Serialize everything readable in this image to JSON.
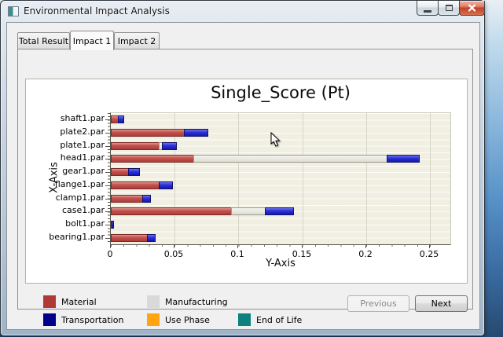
{
  "window": {
    "title": "Environmental Impact Analysis"
  },
  "tabs": [
    {
      "label": "Total Result",
      "active": false
    },
    {
      "label": "Impact 1",
      "active": true
    },
    {
      "label": "Impact 2",
      "active": false
    }
  ],
  "chart_data": {
    "type": "bar",
    "orientation": "horizontal",
    "stacked": true,
    "title": "Single_Score (Pt)",
    "xlabel": "Y-Axis",
    "ylabel": "X-Axis",
    "categories": [
      "shaft1.par",
      "plate2.par",
      "plate1.par",
      "head1.par",
      "gear1.par",
      "flange1.par",
      "clamp1.par",
      "case1.par",
      "bolt1.par",
      "bearing1.par"
    ],
    "series": [
      {
        "name": "Material",
        "color": "#b03a38",
        "values": [
          0.006,
          0.058,
          0.038,
          0.065,
          0.014,
          0.038,
          0.025,
          0.095,
          0.001,
          0.029
        ]
      },
      {
        "name": "Manufacturing",
        "color": "#d9d9d9",
        "values": [
          0,
          0,
          0.003,
          0.152,
          0,
          0,
          0,
          0.027,
          0,
          0
        ]
      },
      {
        "name": "Transportation",
        "color": "#00008b",
        "values": [
          0.005,
          0.019,
          0.012,
          0.026,
          0.009,
          0.011,
          0.007,
          0.023,
          0.002,
          0.007
        ]
      },
      {
        "name": "Use Phase",
        "color": "#ffa513",
        "values": [
          0,
          0,
          0,
          0,
          0,
          0,
          0,
          0,
          0,
          0
        ]
      },
      {
        "name": "End of Life",
        "color": "#0c8180",
        "values": [
          0,
          0,
          0,
          0,
          0,
          0,
          0,
          0,
          0,
          0
        ]
      }
    ],
    "xlim": [
      0,
      0.266
    ],
    "xticks": [
      0,
      0.05,
      0.1,
      0.15,
      0.2,
      0.25
    ],
    "xtick_labels": [
      "0",
      "0.05",
      "0.1",
      "0.15",
      "0.2",
      "0.25"
    ],
    "grid": true,
    "legend_position": "bottom-left"
  },
  "footer": {
    "previous_label": "Previous",
    "previous_enabled": false,
    "next_label": "Next",
    "next_enabled": true
  }
}
